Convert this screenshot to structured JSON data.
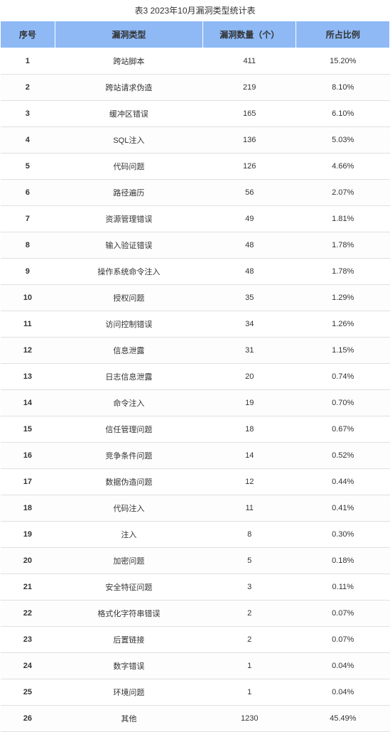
{
  "table": {
    "title": "表3  2023年10月漏洞类型统计表",
    "columns": [
      "序号",
      "漏洞类型",
      "漏洞数量（个）",
      "所占比例"
    ],
    "header_bg_color": "#8eb9f5",
    "header_text_color": "#333333",
    "border_color": "#e0e0e0",
    "font_family": "Microsoft YaHei",
    "rows": [
      [
        "1",
        "跨站脚本",
        "411",
        "15.20%"
      ],
      [
        "2",
        "跨站请求伪造",
        "219",
        "8.10%"
      ],
      [
        "3",
        "缓冲区错误",
        "165",
        "6.10%"
      ],
      [
        "4",
        "SQL注入",
        "136",
        "5.03%"
      ],
      [
        "5",
        "代码问题",
        "126",
        "4.66%"
      ],
      [
        "6",
        "路径遍历",
        "56",
        "2.07%"
      ],
      [
        "7",
        "资源管理错误",
        "49",
        "1.81%"
      ],
      [
        "8",
        "输入验证错误",
        "48",
        "1.78%"
      ],
      [
        "9",
        "操作系统命令注入",
        "48",
        "1.78%"
      ],
      [
        "10",
        "授权问题",
        "35",
        "1.29%"
      ],
      [
        "11",
        "访问控制错误",
        "34",
        "1.26%"
      ],
      [
        "12",
        "信息泄露",
        "31",
        "1.15%"
      ],
      [
        "13",
        "日志信息泄露",
        "20",
        "0.74%"
      ],
      [
        "14",
        "命令注入",
        "19",
        "0.70%"
      ],
      [
        "15",
        "信任管理问题",
        "18",
        "0.67%"
      ],
      [
        "16",
        "竞争条件问题",
        "14",
        "0.52%"
      ],
      [
        "17",
        "数据伪造问题",
        "12",
        "0.44%"
      ],
      [
        "18",
        "代码注入",
        "11",
        "0.41%"
      ],
      [
        "19",
        "注入",
        "8",
        "0.30%"
      ],
      [
        "20",
        "加密问题",
        "5",
        "0.18%"
      ],
      [
        "21",
        "安全特征问题",
        "3",
        "0.11%"
      ],
      [
        "22",
        "格式化字符串错误",
        "2",
        "0.07%"
      ],
      [
        "23",
        "后置链接",
        "2",
        "0.07%"
      ],
      [
        "24",
        "数字错误",
        "1",
        "0.04%"
      ],
      [
        "25",
        "环境问题",
        "1",
        "0.04%"
      ],
      [
        "26",
        "其他",
        "1230",
        "45.49%"
      ]
    ]
  }
}
